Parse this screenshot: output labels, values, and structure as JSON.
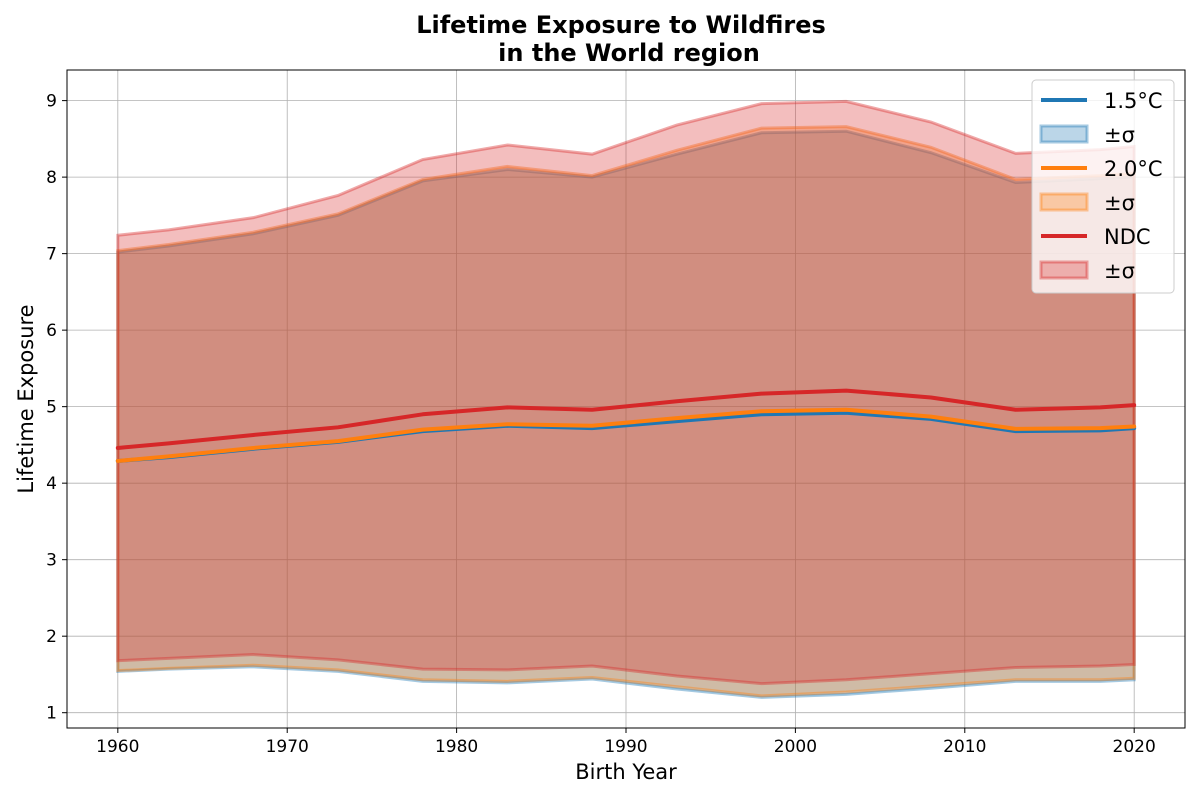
{
  "chart_data": {
    "type": "line",
    "title_line1": "Lifetime Exposure to Wildfires",
    "title_line2": "in the World region",
    "xlabel": "Birth Year",
    "ylabel": "Lifetime Exposure",
    "xlim": [
      1957,
      2023
    ],
    "ylim": [
      0.8,
      9.4
    ],
    "xticks": [
      1960,
      1970,
      1980,
      1990,
      2000,
      2010,
      2020
    ],
    "yticks": [
      1,
      2,
      3,
      4,
      5,
      6,
      7,
      8,
      9
    ],
    "grid": true,
    "legend_position": "top-right",
    "x": [
      1960,
      1963,
      1968,
      1973,
      1978,
      1983,
      1988,
      1993,
      1998,
      2003,
      2008,
      2013,
      2018,
      2020
    ],
    "series": [
      {
        "name": "1.5°C",
        "band_label": "±σ",
        "color": "#1f77b4",
        "values": [
          4.29,
          4.34,
          4.45,
          4.54,
          4.68,
          4.75,
          4.72,
          4.81,
          4.9,
          4.92,
          4.84,
          4.68,
          4.69,
          4.72
        ],
        "upper": [
          7.02,
          7.1,
          7.26,
          7.5,
          7.95,
          8.1,
          8.0,
          8.3,
          8.58,
          8.6,
          8.32,
          7.93,
          7.98,
          8.0
        ],
        "lower": [
          1.54,
          1.57,
          1.6,
          1.54,
          1.41,
          1.39,
          1.44,
          1.31,
          1.2,
          1.24,
          1.32,
          1.41,
          1.41,
          1.43
        ]
      },
      {
        "name": "2.0°C",
        "band_label": "±σ",
        "color": "#ff7f0e",
        "values": [
          4.29,
          4.35,
          4.46,
          4.55,
          4.7,
          4.77,
          4.75,
          4.85,
          4.94,
          4.96,
          4.87,
          4.71,
          4.72,
          4.74
        ],
        "upper": [
          7.04,
          7.12,
          7.28,
          7.52,
          7.97,
          8.14,
          8.02,
          8.35,
          8.64,
          8.66,
          8.39,
          7.97,
          8.02,
          8.05
        ],
        "lower": [
          1.55,
          1.58,
          1.62,
          1.56,
          1.43,
          1.41,
          1.46,
          1.34,
          1.22,
          1.27,
          1.35,
          1.43,
          1.43,
          1.45
        ]
      },
      {
        "name": "NDC",
        "band_label": "±σ",
        "color": "#d62728",
        "values": [
          4.46,
          4.52,
          4.63,
          4.73,
          4.9,
          4.99,
          4.96,
          5.07,
          5.17,
          5.21,
          5.12,
          4.96,
          4.99,
          5.02
        ],
        "upper": [
          7.24,
          7.31,
          7.47,
          7.76,
          8.23,
          8.42,
          8.3,
          8.68,
          8.96,
          8.99,
          8.72,
          8.31,
          8.36,
          8.4
        ],
        "lower": [
          1.68,
          1.71,
          1.76,
          1.69,
          1.57,
          1.56,
          1.61,
          1.48,
          1.38,
          1.43,
          1.51,
          1.59,
          1.61,
          1.63
        ]
      }
    ]
  }
}
